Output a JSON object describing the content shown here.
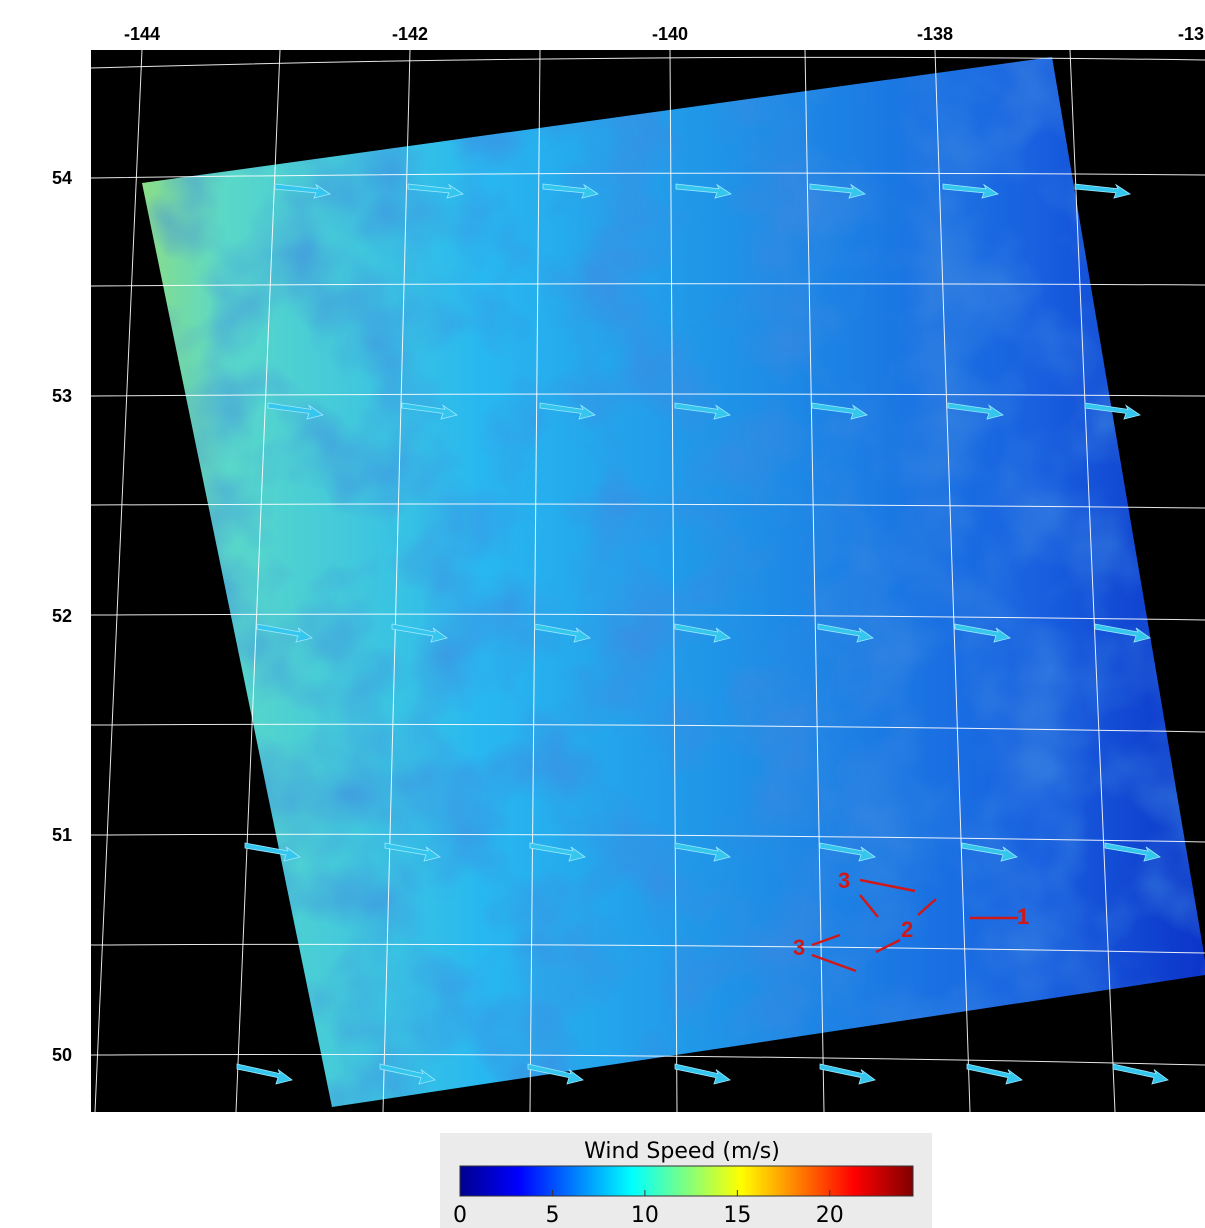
{
  "map": {
    "lon_labels": [
      "-144",
      "-142",
      "-140",
      "-138",
      "-13"
    ],
    "lat_labels": [
      "54",
      "53",
      "52",
      "51",
      "50"
    ],
    "annotations": [
      "3",
      "3",
      "2",
      "1"
    ]
  },
  "colorbar": {
    "title": "Wind Speed (m/s)",
    "lim": [
      0,
      24.5
    ],
    "ticks": [
      0,
      5,
      10,
      15,
      20
    ]
  }
}
